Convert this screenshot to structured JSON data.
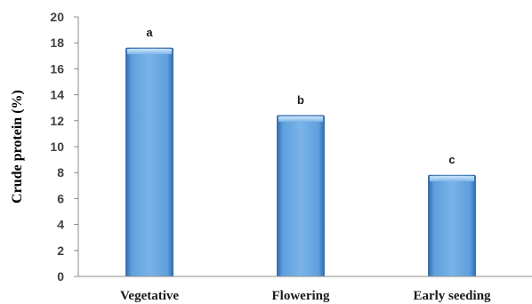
{
  "chart_data": {
    "type": "bar",
    "title": "",
    "xlabel": "",
    "ylabel": "Crude protein (%)",
    "categories": [
      "Vegetative",
      "Flowering",
      "Early seeding"
    ],
    "values": [
      17.6,
      12.4,
      7.8
    ],
    "data_labels": [
      "a",
      "b",
      "c"
    ],
    "ylim": [
      0,
      20
    ],
    "yticks": [
      0,
      2,
      4,
      6,
      8,
      10,
      12,
      14,
      16,
      18,
      20
    ],
    "grid": false,
    "legend": "none",
    "bar_color": "#5b9bd5"
  }
}
